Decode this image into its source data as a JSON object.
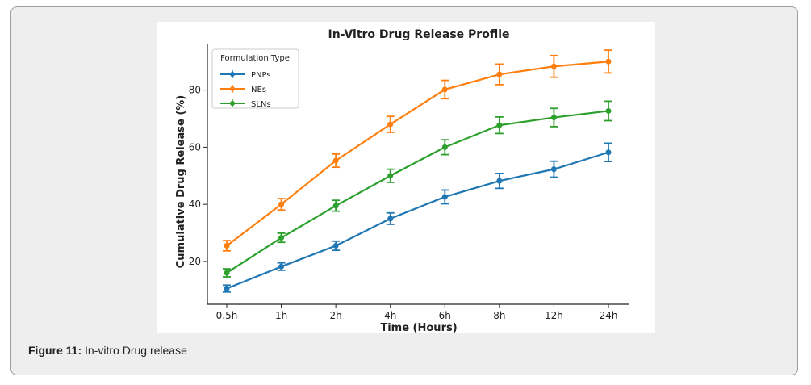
{
  "figure": {
    "caption_label": "Figure 11:",
    "caption_text": " In-vitro Drug release"
  },
  "chart_data": {
    "type": "line",
    "title": "In-Vitro Drug Release Profile",
    "xlabel": "Time (Hours)",
    "ylabel": "Cumulative Drug Release (%)",
    "categories": [
      "0.5h",
      "1h",
      "2h",
      "4h",
      "6h",
      "8h",
      "12h",
      "24h"
    ],
    "ylim": [
      5,
      96
    ],
    "yticks": [
      20,
      40,
      60,
      80
    ],
    "grid": false,
    "legend": {
      "title": "Formulation Type",
      "position": "top-left"
    },
    "series": [
      {
        "name": "PNPs",
        "color": "#1f77b4",
        "values": [
          10.5,
          18.2,
          25.5,
          35.0,
          42.6,
          48.2,
          52.3,
          58.2
        ],
        "errors": [
          1.2,
          1.3,
          1.6,
          2.0,
          2.4,
          2.6,
          2.8,
          3.2
        ]
      },
      {
        "name": "NEs",
        "color": "#ff7f0e",
        "values": [
          25.5,
          40.0,
          55.3,
          68.0,
          80.2,
          85.5,
          88.3,
          90.0
        ],
        "errors": [
          1.8,
          2.0,
          2.3,
          2.8,
          3.2,
          3.6,
          3.8,
          4.0
        ]
      },
      {
        "name": "SLNs",
        "color": "#2ca02c",
        "values": [
          16.0,
          28.3,
          39.5,
          50.0,
          60.0,
          67.7,
          70.4,
          72.7
        ],
        "errors": [
          1.4,
          1.6,
          1.9,
          2.3,
          2.6,
          2.9,
          3.2,
          3.4
        ]
      }
    ]
  }
}
